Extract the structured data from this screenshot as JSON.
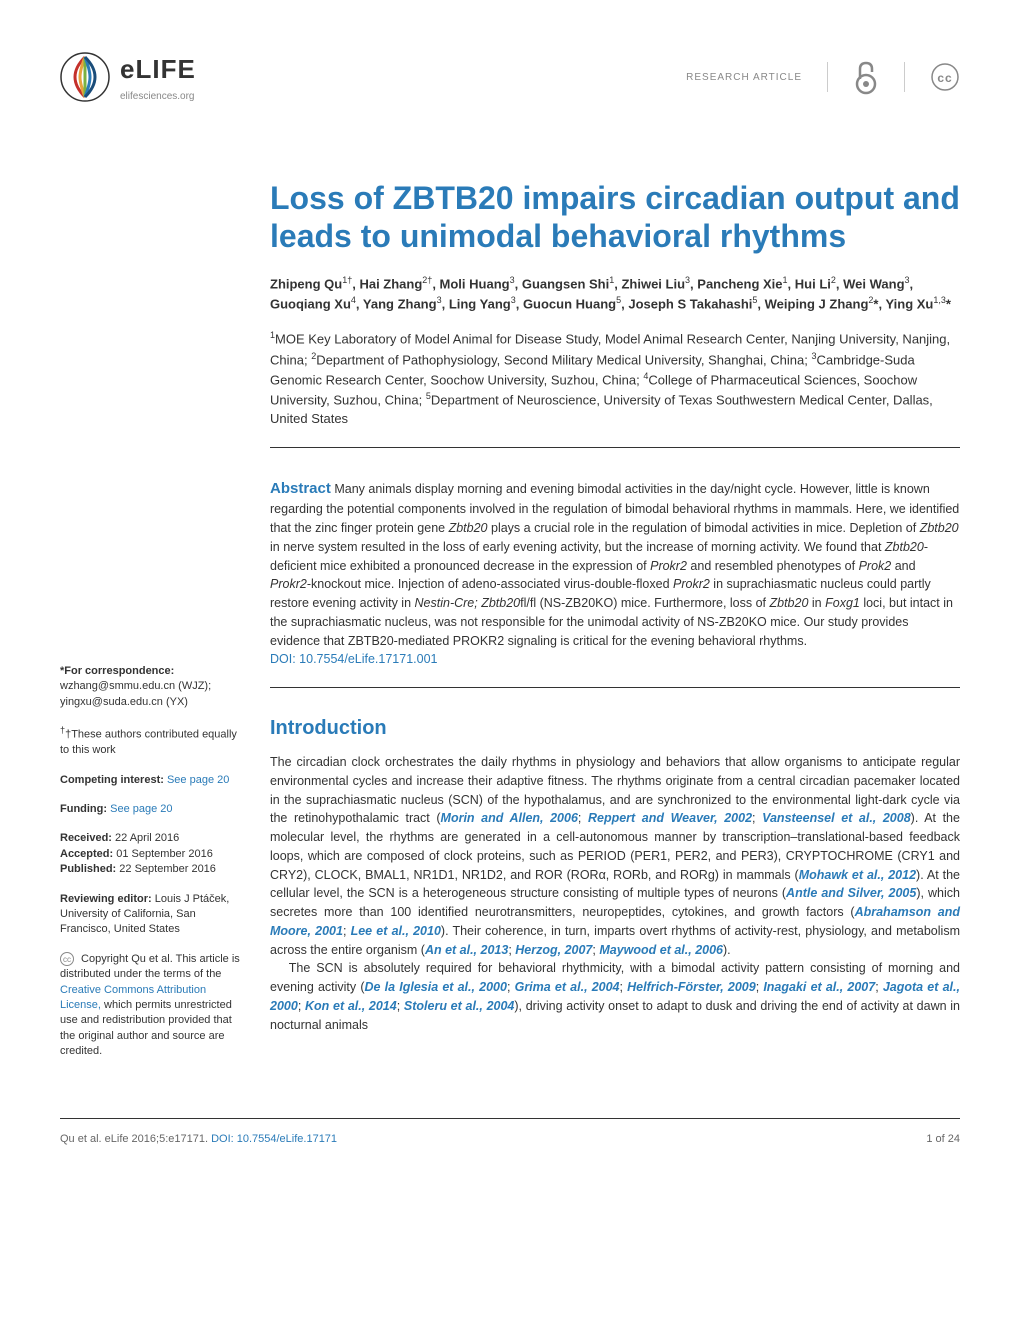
{
  "header": {
    "journal_name": "eLIFE",
    "journal_url": "elifesciences.org",
    "article_type": "RESEARCH ARTICLE"
  },
  "article": {
    "title": "Loss of ZBTB20 impairs circadian output and leads to unimodal behavioral rhythms",
    "authors_html": "Zhipeng Qu<sup>1†</sup>, Hai Zhang<sup>2†</sup>, Moli Huang<sup>3</sup>, Guangsen Shi<sup>1</sup>, Zhiwei Liu<sup>3</sup>, Pancheng Xie<sup>1</sup>, Hui Li<sup>2</sup>, Wei Wang<sup>3</sup>, Guoqiang Xu<sup>4</sup>, Yang Zhang<sup>3</sup>, Ling Yang<sup>3</sup>, Guocun Huang<sup>5</sup>, Joseph S Takahashi<sup>5</sup>, Weiping J Zhang<sup>2</sup>*, Ying Xu<sup>1,3</sup>*",
    "affiliations_html": "<sup>1</sup>MOE Key Laboratory of Model Animal for Disease Study, Model Animal Research Center, Nanjing University, Nanjing, China; <sup>2</sup>Department of Pathophysiology, Second Military Medical University, Shanghai, China; <sup>3</sup>Cambridge-Suda Genomic Research Center, Soochow University, Suzhou, China; <sup>4</sup>College of Pharmaceutical Sciences, Soochow University, Suzhou, China; <sup>5</sup>Department of Neuroscience, University of Texas Southwestern Medical Center, Dallas, United States",
    "abstract": "Many animals display morning and evening bimodal activities in the day/night cycle. However, little is known regarding the potential components involved in the regulation of bimodal behavioral rhythms in mammals. Here, we identified that the zinc finger protein gene Zbtb20 plays a crucial role in the regulation of bimodal activities in mice. Depletion of Zbtb20 in nerve system resulted in the loss of early evening activity, but the increase of morning activity. We found that Zbtb20-deficient mice exhibited a pronounced decrease in the expression of Prokr2 and resembled phenotypes of Prok2 and Prokr2-knockout mice. Injection of adeno-associated virus-double-floxed Prokr2 in suprachiasmatic nucleus could partly restore evening activity in Nestin-Cre; Zbtb20fl/fl (NS-ZB20KO) mice. Furthermore, loss of Zbtb20 in Foxg1 loci, but intact in the suprachiasmatic nucleus, was not responsible for the unimodal activity of NS-ZB20KO mice. Our study provides evidence that ZBTB20-mediated PROKR2 signaling is critical for the evening behavioral rhythms.",
    "doi": "DOI: 10.7554/eLife.17171.001",
    "intro_heading": "Introduction",
    "intro_p1": "The circadian clock orchestrates the daily rhythms in physiology and behaviors that allow organisms to anticipate regular environmental cycles and increase their adaptive fitness. The rhythms originate from a central circadian pacemaker located in the suprachiasmatic nucleus (SCN) of the hypothalamus, and are synchronized to the environmental light-dark cycle via the retinohypothalamic tract (",
    "intro_p1_cont": "). At the molecular level, the rhythms are generated in a cell-autonomous manner by transcription–translational-based feedback loops, which are composed of clock proteins, such as PERIOD (PER1, PER2, and PER3), CRYPTOCHROME (CRY1 and CRY2), CLOCK, BMAL1, NR1D1, NR1D2, and ROR (RORα, RORb, and RORg) in mammals (",
    "intro_p1_cont2": "). At the cellular level, the SCN is a heterogeneous structure consisting of multiple types of neurons (",
    "intro_p1_cont3": "), which secretes more than 100 identified neurotransmitters, neuropeptides, cytokines, and growth factors (",
    "intro_p1_cont4": "). Their coherence, in turn, imparts overt rhythms of activity-rest, physiology, and metabolism across the entire organism (",
    "intro_p1_end": ").",
    "intro_p2": "The SCN is absolutely required for behavioral rhythmicity, with a bimodal activity pattern consisting of morning and evening activity (",
    "intro_p2_cont": "), driving activity onset to adapt to dusk and driving the end of activity at dawn in nocturnal animals",
    "refs": {
      "r1": "Morin and Allen, 2006",
      "r2": "Reppert and Weaver, 2002",
      "r3": "Vansteensel et al., 2008",
      "r4": "Mohawk et al., 2012",
      "r5": "Antle and Silver, 2005",
      "r6": "Abrahamson and Moore, 2001",
      "r7": "Lee et al., 2010",
      "r8": "An et al., 2013",
      "r9": "Herzog, 2007",
      "r10": "Maywood et al., 2006",
      "r11": "De la Iglesia et al., 2000",
      "r12": "Grima et al., 2004",
      "r13": "Helfrich-Förster, 2009",
      "r14": "Inagaki et al., 2007",
      "r15": "Jagota et al., 2000",
      "r16": "Kon et al., 2014",
      "r17": "Stoleru et al., 2004"
    }
  },
  "sidebar": {
    "correspondence_label": "*For correspondence:",
    "correspondence_text": " wzhang@smmu.edu.cn (WJZ); yingxu@suda.edu.cn (YX)",
    "equal_contrib": "†These authors contributed equally to this work",
    "competing_label": "Competing interest:",
    "competing_link": "See page 20",
    "funding_label": "Funding:",
    "funding_link": "See page 20",
    "received_label": "Received:",
    "received_date": " 22 April 2016",
    "accepted_label": "Accepted:",
    "accepted_date": " 01 September 2016",
    "published_label": "Published:",
    "published_date": " 22 September 2016",
    "editor_label": "Reviewing editor:",
    "editor_text": " Louis J Ptáček, University of California, San Francisco, United States",
    "copyright": " Copyright Qu et al. This article is distributed under the terms of the ",
    "copyright_link": "Creative Commons Attribution License,",
    "copyright_cont": " which permits unrestricted use and redistribution provided that the original author and source are credited."
  },
  "footer": {
    "citation": "Qu et al. eLife 2016;5:e17171. ",
    "doi": "DOI: 10.7554/eLife.17171",
    "page": "1 of 24"
  },
  "colors": {
    "brand_blue": "#2a7bb8",
    "text": "#333333",
    "muted": "#888888"
  }
}
